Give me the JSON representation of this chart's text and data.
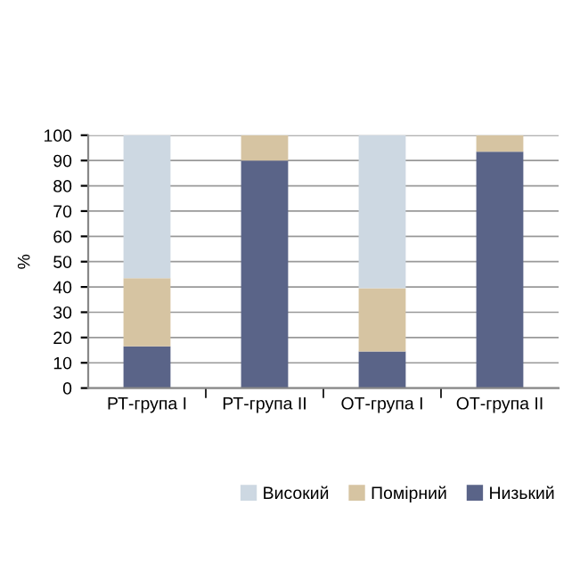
{
  "chart_data": {
    "type": "bar",
    "stacked": true,
    "ylabel": "%",
    "categories": [
      "РТ-група I",
      "РТ-група II",
      "ОТ-група I",
      "ОТ-група II"
    ],
    "series": [
      {
        "name": "Низький",
        "color": "#5a6488",
        "values": [
          16.5,
          90,
          14.5,
          93.5
        ]
      },
      {
        "name": "Помірний",
        "color": "#d6c4a2",
        "values": [
          27,
          10,
          25,
          6.5
        ]
      },
      {
        "name": "Високий",
        "color": "#cdd8e2",
        "values": [
          56.5,
          0,
          60.5,
          0
        ]
      }
    ],
    "ylim": [
      0,
      100
    ],
    "yticks": [
      0,
      10,
      20,
      30,
      40,
      50,
      60,
      70,
      80,
      90,
      100
    ],
    "grid": "y",
    "legend": "bottom right"
  }
}
